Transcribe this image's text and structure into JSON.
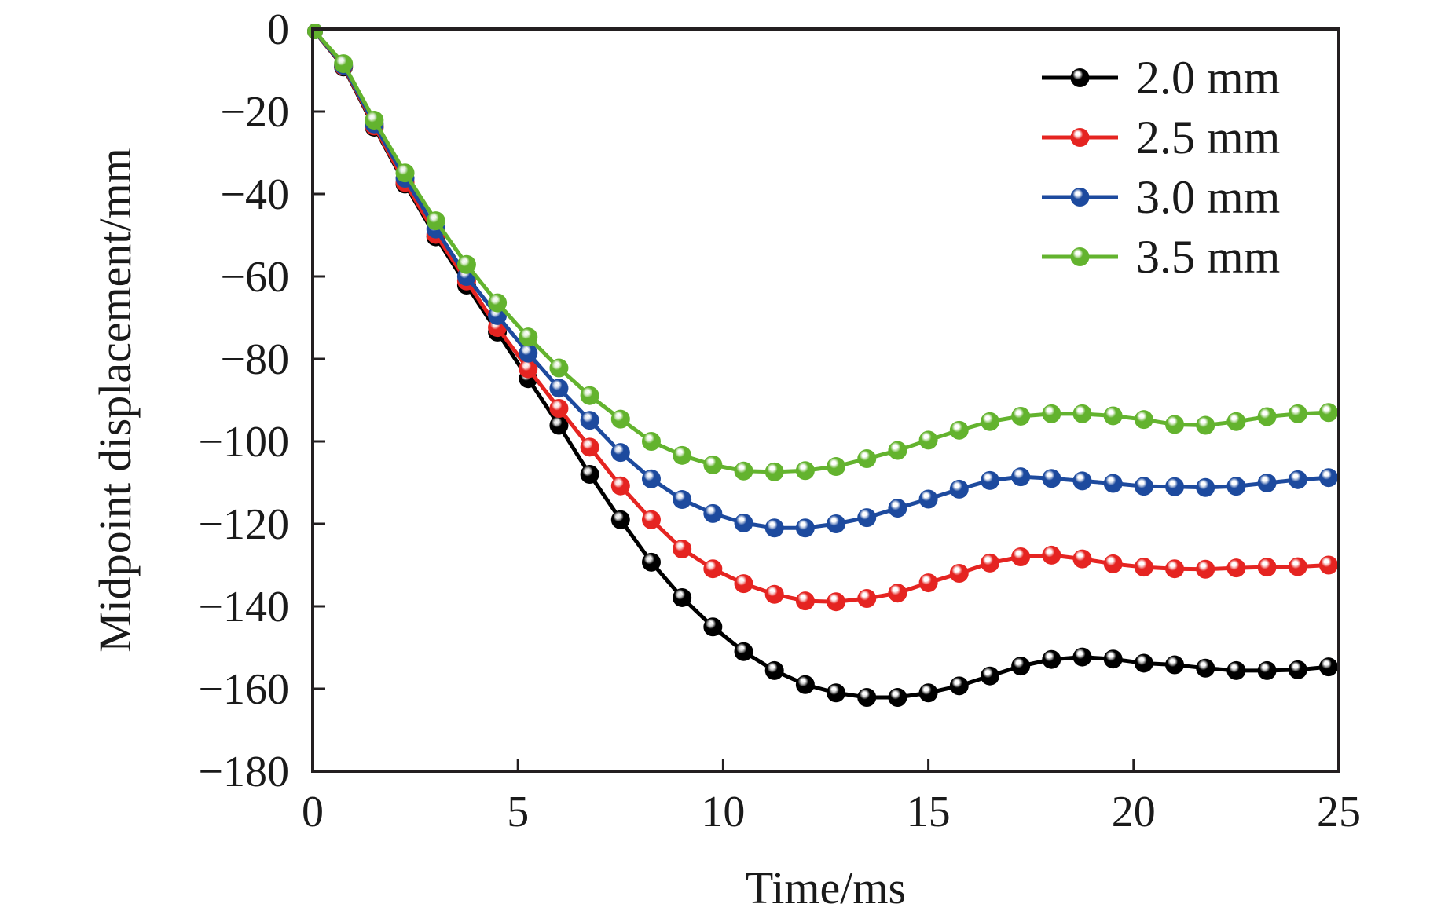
{
  "chart_data": {
    "type": "line",
    "title": "",
    "xlabel": "Time/ms",
    "ylabel": "Midpoint displacement/mm",
    "xlim": [
      0,
      25
    ],
    "ylim": [
      -180,
      0
    ],
    "x_ticks": [
      0,
      5,
      10,
      15,
      20,
      25
    ],
    "x_tick_labels": [
      "0",
      "5",
      "10",
      "15",
      "20",
      "25"
    ],
    "y_ticks": [
      0,
      -20,
      -40,
      -60,
      -80,
      -100,
      -120,
      -140,
      -160,
      -180
    ],
    "y_tick_labels": [
      "0",
      "−20",
      "−40",
      "−60",
      "−80",
      "−100",
      "−120",
      "−140",
      "−160",
      "−180"
    ],
    "grid": false,
    "legend_position": "top-right",
    "marker": "sphere",
    "x": [
      0,
      0.75,
      1.5,
      2.25,
      3.0,
      3.75,
      4.5,
      5.25,
      6.0,
      6.75,
      7.5,
      8.25,
      9.0,
      9.75,
      10.5,
      11.25,
      12.0,
      12.75,
      13.5,
      14.25,
      15.0,
      15.75,
      16.5,
      17.25,
      18.0,
      18.75,
      19.5,
      20.25,
      21.0,
      21.75,
      22.5,
      23.25,
      24.0,
      24.75
    ],
    "series": [
      {
        "name": "2.0 mm",
        "color": "#000000",
        "values": [
          0,
          -9.2,
          -23.8,
          -37.6,
          -50.4,
          -62.1,
          -73.5,
          -84.8,
          -96.1,
          -108.0,
          -119.0,
          -129.3,
          -137.9,
          -145.0,
          -151.0,
          -155.6,
          -159.0,
          -161.0,
          -162.1,
          -162.1,
          -161.0,
          -159.3,
          -156.9,
          -154.5,
          -152.9,
          -152.3,
          -152.8,
          -153.8,
          -154.2,
          -155.0,
          -155.6,
          -155.6,
          -155.4,
          -154.7
        ]
      },
      {
        "name": "2.5 mm",
        "color": "#e52421",
        "values": [
          0,
          -9.0,
          -23.5,
          -37.2,
          -49.8,
          -61.1,
          -72.4,
          -82.4,
          -92.0,
          -101.4,
          -110.8,
          -119.0,
          -126.1,
          -130.9,
          -134.5,
          -137.1,
          -138.7,
          -138.9,
          -138.1,
          -136.8,
          -134.3,
          -132.0,
          -129.5,
          -128.0,
          -127.6,
          -128.5,
          -129.7,
          -130.5,
          -130.9,
          -131.0,
          -130.7,
          -130.5,
          -130.4,
          -130.0
        ]
      },
      {
        "name": "3.0 mm",
        "color": "#1d4a9e",
        "values": [
          0,
          -8.8,
          -23.0,
          -36.2,
          -48.5,
          -60.0,
          -69.5,
          -78.6,
          -87.1,
          -94.9,
          -102.7,
          -109.1,
          -114.1,
          -117.5,
          -119.8,
          -121.0,
          -121.0,
          -120.0,
          -118.5,
          -116.2,
          -114.0,
          -111.6,
          -109.5,
          -108.6,
          -109.0,
          -109.6,
          -110.2,
          -110.9,
          -111.0,
          -111.2,
          -110.9,
          -110.1,
          -109.3,
          -108.8
        ]
      },
      {
        "name": "3.5 mm",
        "color": "#63b32e",
        "values": [
          0,
          -8.4,
          -22.1,
          -34.9,
          -46.5,
          -57.1,
          -66.4,
          -74.7,
          -82.2,
          -88.9,
          -94.6,
          -100.0,
          -103.4,
          -105.7,
          -107.2,
          -107.4,
          -107.1,
          -106.1,
          -104.2,
          -102.2,
          -99.7,
          -97.3,
          -95.2,
          -93.9,
          -93.3,
          -93.3,
          -93.8,
          -94.7,
          -95.9,
          -96.1,
          -95.2,
          -94.0,
          -93.3,
          -93.0
        ]
      }
    ]
  }
}
